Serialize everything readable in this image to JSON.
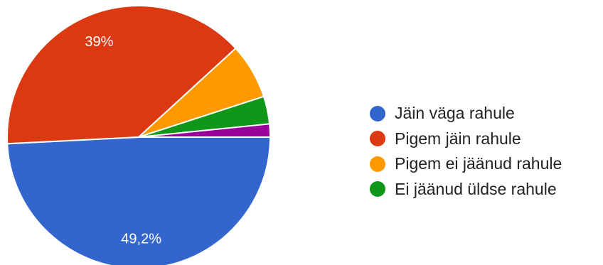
{
  "chart_data": {
    "type": "pie",
    "categories": [
      "Jäin väga rahule",
      "Pigem jäin rahule",
      "Pigem ei jäänud rahule",
      "Ei jäänud üldse rahule",
      ""
    ],
    "values": [
      49.2,
      39,
      6.8,
      3.4,
      1.6
    ],
    "data_labels": [
      "49,2%",
      "39%",
      "",
      "",
      ""
    ],
    "colors": [
      "#3366cc",
      "#dc3912",
      "#ff9900",
      "#109618",
      "#990099"
    ],
    "legend": {
      "position": "right",
      "entries": [
        "Jäin väga rahule",
        "Pigem jäin rahule",
        "Pigem ei jäänud rahule",
        "Ei jäänud üldse rahule"
      ]
    },
    "start_direction": "east",
    "direction": "clockwise"
  }
}
